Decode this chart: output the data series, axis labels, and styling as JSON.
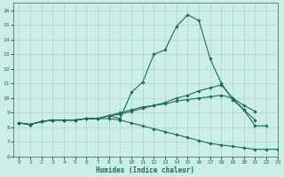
{
  "xlabel": "Humidex (Indice chaleur)",
  "xlim": [
    -0.5,
    23
  ],
  "ylim": [
    6,
    16.5
  ],
  "xticks": [
    0,
    1,
    2,
    3,
    4,
    5,
    6,
    7,
    8,
    9,
    10,
    11,
    12,
    13,
    14,
    15,
    16,
    17,
    18,
    19,
    20,
    21,
    22,
    23
  ],
  "yticks": [
    6,
    7,
    8,
    9,
    10,
    11,
    12,
    13,
    14,
    15,
    16
  ],
  "bg_color": "#cceee8",
  "grid_color": "#aad4cc",
  "line_color": "#1a6b5a",
  "line1_x": [
    0,
    1,
    2,
    3,
    4,
    5,
    6,
    7,
    8,
    9,
    10,
    11,
    12,
    13,
    14,
    15,
    16,
    17,
    18,
    19,
    20,
    21,
    22
  ],
  "line1_y": [
    8.3,
    8.2,
    8.4,
    8.5,
    8.5,
    8.5,
    8.6,
    8.6,
    8.8,
    8.6,
    10.4,
    11.1,
    13.0,
    13.3,
    14.9,
    15.7,
    15.3,
    12.7,
    11.0,
    9.9,
    9.2,
    8.1,
    8.1
  ],
  "line2_x": [
    0,
    1,
    2,
    3,
    4,
    5,
    6,
    7,
    8,
    9,
    10,
    11,
    12,
    13,
    14,
    15,
    16,
    17,
    18,
    19,
    20,
    21
  ],
  "line2_y": [
    8.3,
    8.2,
    8.4,
    8.5,
    8.5,
    8.5,
    8.6,
    8.6,
    8.8,
    8.9,
    9.1,
    9.3,
    9.5,
    9.7,
    10.0,
    10.2,
    10.5,
    10.7,
    10.9,
    10.0,
    9.2,
    8.5
  ],
  "line3_x": [
    0,
    1,
    2,
    3,
    4,
    5,
    6,
    7,
    8,
    9,
    10,
    11,
    12,
    13,
    14,
    15,
    16,
    17,
    18,
    19,
    20,
    21
  ],
  "line3_y": [
    8.3,
    8.2,
    8.4,
    8.5,
    8.5,
    8.5,
    8.6,
    8.6,
    8.8,
    9.0,
    9.2,
    9.4,
    9.5,
    9.6,
    9.8,
    9.9,
    10.0,
    10.1,
    10.2,
    10.0,
    9.5,
    9.1
  ],
  "line4_x": [
    0,
    1,
    2,
    3,
    4,
    5,
    6,
    7,
    8,
    9,
    10,
    11,
    12,
    13,
    14,
    15,
    16,
    17,
    18,
    19,
    20,
    21,
    22,
    23
  ],
  "line4_y": [
    8.3,
    8.2,
    8.4,
    8.5,
    8.5,
    8.5,
    8.6,
    8.6,
    8.6,
    8.5,
    8.3,
    8.1,
    7.9,
    7.7,
    7.5,
    7.3,
    7.1,
    6.9,
    6.8,
    6.7,
    6.6,
    6.5,
    6.5,
    6.5
  ]
}
